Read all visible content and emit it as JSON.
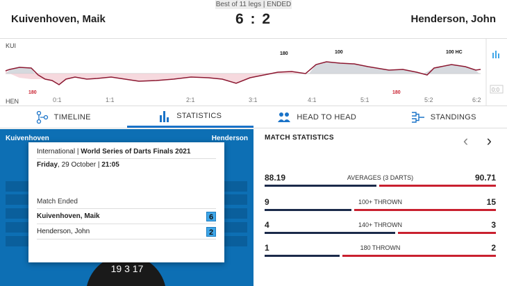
{
  "header": {
    "status": "Best of 11 legs | ENDED",
    "player1": "Kuivenhoven, Maik",
    "player2": "Henderson, John",
    "score": "6 : 2"
  },
  "chart": {
    "top_label": "KUI",
    "bottom_label": "HEN",
    "x_ticks": [
      "0:1",
      "1:1",
      "2:1",
      "3:1",
      "4:1",
      "5:1",
      "5:2",
      "6:2"
    ],
    "annotations_top": [
      "180",
      "100",
      "100 HC"
    ],
    "annotations_bottom": [
      "180",
      "180"
    ],
    "side_box": "0:0"
  },
  "tabs": [
    {
      "label": "TIMELINE",
      "icon": "timeline-icon"
    },
    {
      "label": "STATISTICS",
      "icon": "statistics-icon"
    },
    {
      "label": "HEAD TO HEAD",
      "icon": "head-to-head-icon"
    },
    {
      "label": "STANDINGS",
      "icon": "standings-icon"
    }
  ],
  "board": {
    "home": "Kuivenhoven",
    "away": "Henderson",
    "numbers": "19  3  17"
  },
  "popup": {
    "competition_prefix": "International |",
    "competition": "World Series of Darts Finals 2021",
    "day": "Friday",
    "date": ", 29 October |",
    "time": "21:05",
    "status": "Match Ended",
    "p1": "Kuivenhoven, Maik",
    "p1_score": "6",
    "p2": "Henderson, John",
    "p2_score": "2"
  },
  "stats": {
    "title": "MATCH STATISTICS",
    "prev": "‹",
    "next": "›",
    "rows": [
      {
        "label": "AVERAGES (3 DARTS)",
        "left": "88.19",
        "right": "90.71",
        "left_frac": 0.49
      },
      {
        "label": "100+ THROWN",
        "left": "9",
        "right": "15",
        "left_frac": 0.38
      },
      {
        "label": "140+ THROWN",
        "left": "4",
        "right": "3",
        "left_frac": 0.57
      },
      {
        "label": "180 THROWN",
        "left": "1",
        "right": "2",
        "left_frac": 0.33
      }
    ]
  },
  "colors": {
    "accent": "#1a73c8",
    "board_blue": "#0d6fb4",
    "navy": "#1b2a4a",
    "red": "#c9202f"
  }
}
